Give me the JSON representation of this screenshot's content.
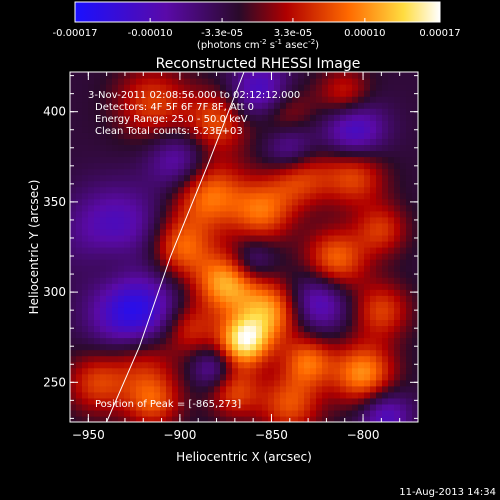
{
  "colorbar": {
    "ticks": [
      "-0.00017",
      "-0.00010",
      "-3.3e-05",
      "3.3e-05",
      "0.00010",
      "0.00017"
    ],
    "tick_values": [
      -0.00017,
      -0.0001,
      -3.3e-05,
      3.3e-05,
      0.0001,
      0.00017
    ],
    "range": [
      -0.00017,
      0.00017
    ],
    "units_prefix": "(photons cm",
    "units_exp1": "-2",
    "units_mid": " s",
    "units_exp2": "-1",
    "units_mid2": " asec",
    "units_exp3": "-2",
    "units_suffix": ")",
    "colors": [
      "#1a10ff",
      "#5a0aa8",
      "#2a0a2a",
      "#b00000",
      "#ff6a00",
      "#ffdc40",
      "#ffffff"
    ]
  },
  "annotations": {
    "time": "3-Nov-2011 02:08:56.000 to 02:12:12.000",
    "detectors": "Detectors: 4F 5F 6F 7F 8F, Att 0",
    "energy": "Energy Range: 25.0 - 50.0 keV",
    "clean": "Clean     Total counts: 5.23E+03",
    "peak": "Position of Peak = [-865,273]"
  },
  "footer": {
    "date": "11-Aug-2013 14:34"
  },
  "chart_data": {
    "type": "heatmap",
    "title": "Reconstructed RHESSI Image",
    "xlabel": "Heliocentric X (arcsec)",
    "ylabel": "Heliocentric Y (arcsec)",
    "xlim": [
      -960,
      -770
    ],
    "ylim": [
      228,
      422
    ],
    "xticks": [
      -950,
      -900,
      -850,
      -800
    ],
    "yticks": [
      250,
      300,
      350,
      400
    ],
    "xtick_labels": [
      "−950",
      "−900",
      "−850",
      "−800"
    ],
    "ytick_labels": [
      "250",
      "300",
      "350",
      "400"
    ],
    "peak": [
      -865,
      273
    ],
    "limb_points": [
      [
        -940,
        228
      ],
      [
        -922,
        270
      ],
      [
        -905,
        320
      ],
      [
        -885,
        370
      ],
      [
        -865,
        422
      ]
    ],
    "blobs": [
      [
        -865,
        273,
        1.0,
        10
      ],
      [
        -850,
        290,
        0.75,
        12
      ],
      [
        -875,
        305,
        0.8,
        12
      ],
      [
        -900,
        325,
        0.65,
        12
      ],
      [
        -935,
        318,
        0.5,
        14
      ],
      [
        -885,
        355,
        0.7,
        14
      ],
      [
        -855,
        345,
        0.6,
        12
      ],
      [
        -880,
        395,
        0.55,
        12
      ],
      [
        -915,
        405,
        0.5,
        14
      ],
      [
        -835,
        365,
        0.55,
        12
      ],
      [
        -805,
        365,
        0.55,
        12
      ],
      [
        -815,
        318,
        0.65,
        12
      ],
      [
        -790,
        290,
        0.5,
        11
      ],
      [
        -800,
        255,
        0.75,
        12
      ],
      [
        -830,
        262,
        0.6,
        10
      ],
      [
        -840,
        238,
        0.55,
        12
      ],
      [
        -920,
        265,
        0.45,
        13
      ],
      [
        -945,
        250,
        0.5,
        12
      ],
      [
        -915,
        240,
        0.55,
        11
      ],
      [
        -845,
        400,
        0.5,
        12
      ],
      [
        -810,
        410,
        0.45,
        10
      ],
      [
        -790,
        335,
        0.45,
        10
      ],
      [
        -895,
        280,
        0.45,
        10
      ],
      [
        -870,
        245,
        0.5,
        10
      ],
      [
        -935,
        330,
        -0.7,
        18
      ],
      [
        -925,
        288,
        -0.8,
        16
      ],
      [
        -855,
        410,
        -0.7,
        12
      ],
      [
        -840,
        380,
        -0.55,
        10
      ],
      [
        -805,
        390,
        -0.6,
        12
      ],
      [
        -825,
        295,
        -0.55,
        12
      ],
      [
        -900,
        372,
        -0.5,
        12
      ],
      [
        -860,
        318,
        -0.35,
        8
      ],
      [
        -882,
        258,
        -0.4,
        8
      ],
      [
        -788,
        232,
        -0.5,
        10
      ]
    ]
  }
}
